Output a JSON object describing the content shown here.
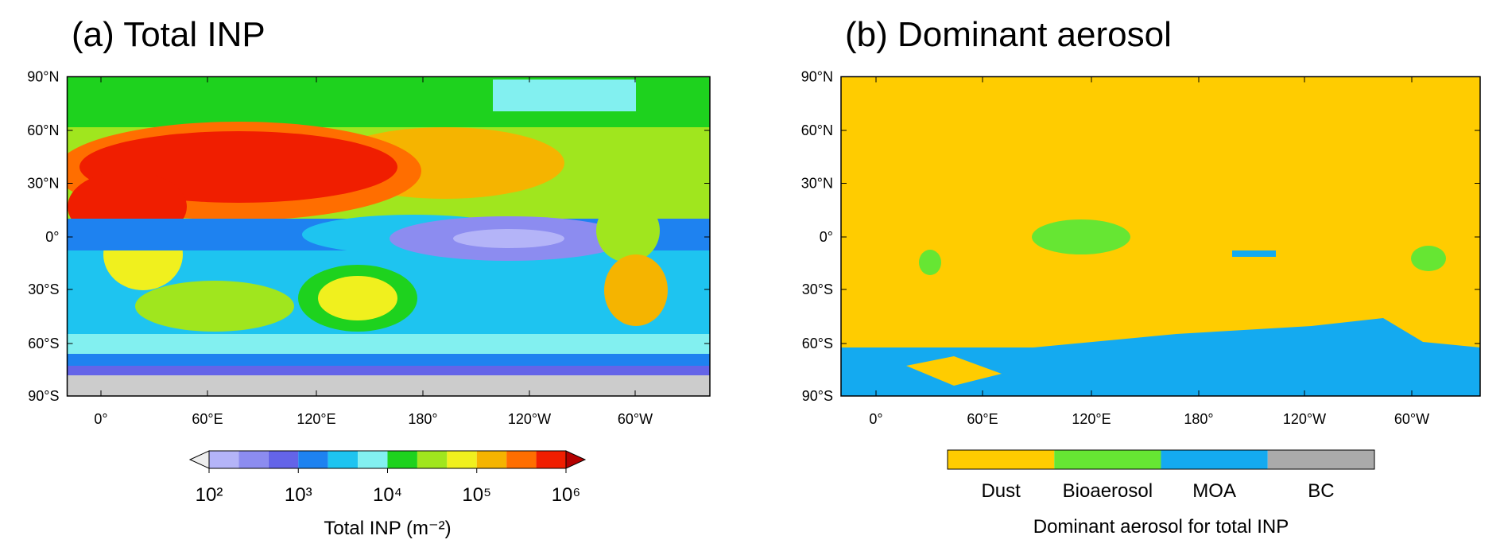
{
  "panels": [
    {
      "title": "(a) Total INP",
      "lat_labels": [
        "90°N",
        "60°N",
        "30°N",
        "0°",
        "30°S",
        "60°S",
        "90°S"
      ],
      "lon_labels": [
        "0°",
        "60°E",
        "120°E",
        "180°",
        "120°W",
        "60°W"
      ],
      "colorbar": {
        "colors": [
          "#b4b4f8",
          "#8c8cf0",
          "#6464e8",
          "#1e82f0",
          "#1ec4f0",
          "#82f0f0",
          "#1ed21e",
          "#a0e61e",
          "#f0f01e",
          "#f5b400",
          "#ff6e00",
          "#f01e00"
        ],
        "under_color": "#eeeeee",
        "over_color": "#b40000",
        "tick_labels": [
          "10²",
          "10³",
          "10⁴",
          "10⁵",
          "10⁶"
        ],
        "label": "Total INP (m⁻²)"
      }
    },
    {
      "title": "(b) Dominant aerosol",
      "lat_labels": [
        "90°N",
        "60°N",
        "30°N",
        "0°",
        "30°S",
        "60°S",
        "90°S"
      ],
      "lon_labels": [
        "0°",
        "60°E",
        "120°E",
        "180°",
        "120°W",
        "60°W"
      ],
      "legend": {
        "categories": [
          {
            "name": "Dust",
            "color": "#ffcc00"
          },
          {
            "name": "Bioaerosol",
            "color": "#66e633"
          },
          {
            "name": "MOA",
            "color": "#14aaf0"
          },
          {
            "name": "BC",
            "color": "#aaaaaa"
          }
        ],
        "label": "Dominant aerosol for total INP"
      }
    }
  ]
}
